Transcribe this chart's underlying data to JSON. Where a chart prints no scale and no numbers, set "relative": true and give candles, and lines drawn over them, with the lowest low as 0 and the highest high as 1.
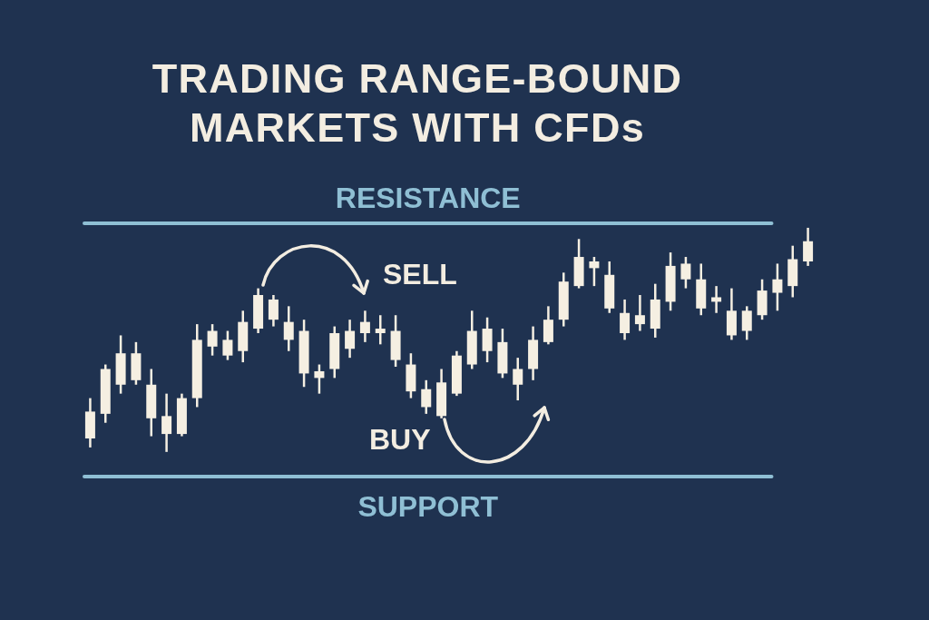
{
  "chart_data": {
    "type": "candlestick",
    "title": "TRADING RANGE-BOUND MARKETS WITH CFDs",
    "relative": true,
    "color": "#f5efe2",
    "categories": [
      null,
      null,
      null,
      null,
      null,
      null,
      null,
      null,
      null,
      null,
      null,
      null,
      null,
      null,
      null,
      null,
      null,
      null,
      null,
      null,
      null,
      null,
      null,
      null,
      null,
      null,
      null,
      null,
      null,
      null,
      null,
      null,
      null,
      null,
      null,
      null,
      null,
      null,
      null,
      null,
      null,
      null,
      null,
      null,
      null,
      null,
      null,
      null
    ],
    "ohlc": [
      [
        0.06,
        0.24,
        0.02,
        0.18
      ],
      [
        0.17,
        0.39,
        0.13,
        0.37
      ],
      [
        0.3,
        0.52,
        0.26,
        0.44
      ],
      [
        0.32,
        0.49,
        0.3,
        0.44
      ],
      [
        0.15,
        0.37,
        0.07,
        0.3
      ],
      [
        0.08,
        0.26,
        0,
        0.16
      ],
      [
        0.08,
        0.26,
        0.07,
        0.24
      ],
      [
        0.24,
        0.57,
        0.2,
        0.5
      ],
      [
        0.47,
        0.57,
        0.43,
        0.54
      ],
      [
        0.43,
        0.54,
        0.41,
        0.5
      ],
      [
        0.45,
        0.63,
        0.4,
        0.58
      ],
      [
        0.55,
        0.73,
        0.53,
        0.7
      ],
      [
        0.59,
        0.7,
        0.56,
        0.68
      ],
      [
        0.5,
        0.65,
        0.45,
        0.58
      ],
      [
        0.35,
        0.59,
        0.29,
        0.54
      ],
      [
        0.33,
        0.39,
        0.26,
        0.36
      ],
      [
        0.37,
        0.56,
        0.33,
        0.53
      ],
      [
        0.46,
        0.59,
        0.42,
        0.54
      ],
      [
        0.53,
        0.63,
        0.49,
        0.58
      ],
      [
        0.53,
        0.61,
        0.48,
        0.55
      ],
      [
        0.41,
        0.61,
        0.38,
        0.54
      ],
      [
        0.27,
        0.44,
        0.24,
        0.39
      ],
      [
        0.2,
        0.32,
        0.17,
        0.28
      ],
      [
        0.16,
        0.37,
        0.15,
        0.31
      ],
      [
        0.26,
        0.45,
        0.25,
        0.43
      ],
      [
        0.39,
        0.63,
        0.37,
        0.54
      ],
      [
        0.45,
        0.6,
        0.4,
        0.55
      ],
      [
        0.35,
        0.55,
        0.33,
        0.49
      ],
      [
        0.3,
        0.42,
        0.23,
        0.37
      ],
      [
        0.37,
        0.56,
        0.32,
        0.5
      ],
      [
        0.49,
        0.65,
        0.48,
        0.59
      ],
      [
        0.59,
        0.8,
        0.56,
        0.76
      ],
      [
        0.74,
        0.95,
        0.73,
        0.87
      ],
      [
        0.82,
        0.87,
        0.74,
        0.85
      ],
      [
        0.64,
        0.85,
        0.62,
        0.79
      ],
      [
        0.53,
        0.68,
        0.5,
        0.62
      ],
      [
        0.57,
        0.7,
        0.54,
        0.61
      ],
      [
        0.55,
        0.75,
        0.51,
        0.68
      ],
      [
        0.67,
        0.89,
        0.63,
        0.83
      ],
      [
        0.77,
        0.87,
        0.73,
        0.84
      ],
      [
        0.64,
        0.84,
        0.61,
        0.77
      ],
      [
        0.67,
        0.74,
        0.62,
        0.69
      ],
      [
        0.52,
        0.73,
        0.5,
        0.63
      ],
      [
        0.54,
        0.65,
        0.5,
        0.63
      ],
      [
        0.61,
        0.77,
        0.59,
        0.72
      ],
      [
        0.71,
        0.84,
        0.63,
        0.77
      ],
      [
        0.74,
        0.92,
        0.69,
        0.86
      ],
      [
        0.85,
        1.0,
        0.83,
        0.94
      ]
    ],
    "ref_lines": [
      {
        "axis": "y",
        "value": 1.02,
        "label": "RESISTANCE",
        "color": "#8fbfd4"
      },
      {
        "axis": "y",
        "value": -0.11,
        "label": "SUPPORT",
        "color": "#8fbfd4"
      }
    ],
    "annotations": [
      "SELL",
      "BUY"
    ]
  }
}
